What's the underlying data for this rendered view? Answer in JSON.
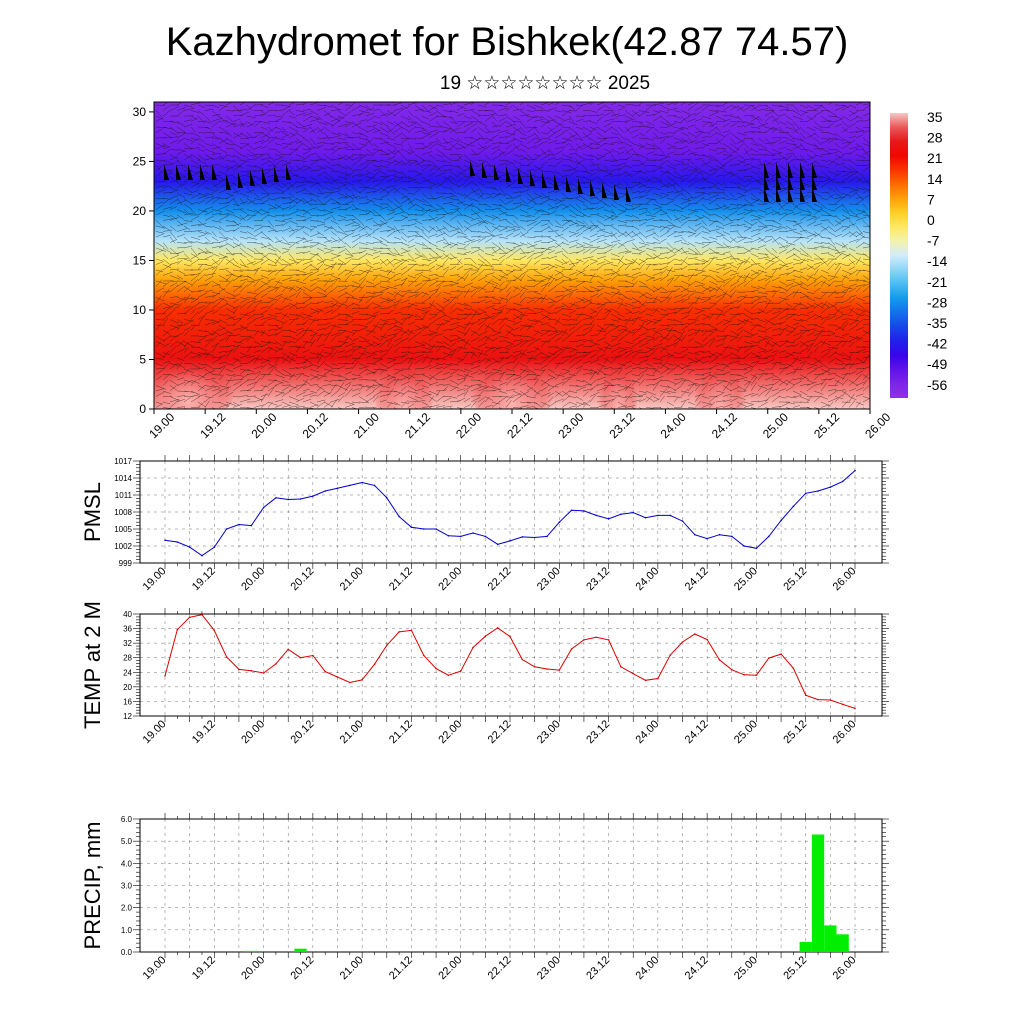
{
  "title": "Kazhydromet for Bishkek(42.87 74.57)",
  "subtitle": "19 ☆☆☆☆☆☆☆☆ 2025",
  "chart_data": [
    {
      "type": "heatmap",
      "title": "",
      "yticks": [
        "0",
        "5",
        "10",
        "15",
        "20",
        "25",
        "30"
      ],
      "ylim": [
        0,
        31
      ],
      "xticks": [
        "19.00",
        "19.12",
        "20.00",
        "20.12",
        "21.00",
        "21.12",
        "22.00",
        "22.12",
        "23.00",
        "23.12",
        "24.00",
        "24.12",
        "25.00",
        "25.12",
        "26.00"
      ],
      "colorbar": {
        "labels": [
          "35",
          "28",
          "21",
          "14",
          "7",
          "0",
          "-7",
          "-14",
          "-21",
          "-28",
          "-35",
          "-42",
          "-49",
          "-56"
        ]
      },
      "temperature_profile": [
        {
          "level": 0,
          "value": 35
        },
        {
          "level": 5,
          "value": 24
        },
        {
          "level": 10,
          "value": 16
        },
        {
          "level": 13,
          "value": 6
        },
        {
          "level": 15,
          "value": -4
        },
        {
          "level": 17,
          "value": -16
        },
        {
          "level": 20,
          "value": -30
        },
        {
          "level": 23,
          "value": -45
        },
        {
          "level": 26,
          "value": -55
        },
        {
          "level": 31,
          "value": -60
        }
      ]
    },
    {
      "type": "line",
      "ylabel": "PMSL",
      "ylim": [
        999,
        1017
      ],
      "yticks": [
        "999",
        "1002",
        "1005",
        "1008",
        "1011",
        "1014",
        "1017"
      ],
      "xticks": [
        "19.00",
        "19.12",
        "20.00",
        "20.12",
        "21.00",
        "21.12",
        "22.00",
        "22.12",
        "23.00",
        "23.12",
        "24.00",
        "24.12",
        "25.00",
        "25.12",
        "26.00"
      ],
      "series": [
        {
          "color": "#0000cc",
          "values": [
            1003.0,
            1002.7,
            1001.8,
            1000.3,
            1001.8,
            1005.0,
            1005.8,
            1005.6,
            1008.8,
            1010.5,
            1010.2,
            1010.3,
            1010.8,
            1011.7,
            1012.2,
            1012.7,
            1013.2,
            1012.7,
            1010.5,
            1007.2,
            1005.3,
            1005.0,
            1005.0,
            1003.8,
            1003.7,
            1004.3,
            1003.7,
            1002.3,
            1002.9,
            1003.6,
            1003.5,
            1003.7,
            1006.2,
            1008.3,
            1008.2,
            1007.4,
            1006.8,
            1007.6,
            1007.9,
            1007.0,
            1007.4,
            1007.4,
            1006.4,
            1004.0,
            1003.3,
            1004.0,
            1003.7,
            1002.0,
            1001.6,
            1003.7,
            1006.5,
            1009.0,
            1011.3,
            1011.7,
            1012.4,
            1013.4,
            1015.3
          ]
        }
      ]
    },
    {
      "type": "line",
      "ylabel": "TEMP at 2 M",
      "ylim": [
        12,
        40
      ],
      "yticks": [
        "12",
        "16",
        "20",
        "24",
        "28",
        "32",
        "36",
        "40"
      ],
      "xticks": [
        "19.00",
        "19.12",
        "20.00",
        "20.12",
        "21.00",
        "21.12",
        "22.00",
        "22.12",
        "23.00",
        "23.12",
        "24.00",
        "24.12",
        "25.00",
        "25.12",
        "26.00"
      ],
      "series": [
        {
          "color": "#dd0000",
          "values": [
            23.0,
            35.7,
            39.1,
            39.8,
            35.5,
            28.2,
            24.8,
            24.4,
            23.8,
            26.3,
            30.3,
            28.0,
            28.6,
            24.2,
            22.7,
            21.2,
            21.9,
            26.2,
            31.4,
            35.1,
            35.5,
            28.6,
            25.0,
            23.2,
            24.3,
            30.8,
            33.9,
            36.2,
            33.8,
            27.5,
            25.5,
            24.9,
            24.6,
            30.4,
            32.9,
            33.6,
            32.9,
            25.5,
            23.6,
            21.8,
            22.3,
            28.7,
            32.3,
            34.5,
            33.0,
            27.4,
            24.7,
            23.3,
            23.2,
            27.9,
            29.0,
            25.1,
            17.7,
            16.5,
            16.4,
            15.2,
            14.1
          ]
        }
      ]
    },
    {
      "type": "bar",
      "ylabel": "PRECIP, mm",
      "ylim": [
        0,
        6
      ],
      "yticks": [
        "0.0",
        "1.0",
        "2.0",
        "3.0",
        "4.0",
        "5.0",
        "6.0"
      ],
      "xticks": [
        "19.00",
        "19.12",
        "20.00",
        "20.12",
        "21.00",
        "21.12",
        "22.00",
        "22.12",
        "23.00",
        "23.12",
        "24.00",
        "24.12",
        "25.00",
        "25.12",
        "26.00"
      ],
      "color": "#00ee00",
      "bars": [
        {
          "step": 7,
          "value": 0.05
        },
        {
          "step": 11,
          "value": 0.15
        },
        {
          "step": 52,
          "value": 0.45
        },
        {
          "step": 53,
          "value": 5.3
        },
        {
          "step": 54,
          "value": 1.2
        },
        {
          "step": 55,
          "value": 0.8
        }
      ]
    }
  ],
  "colors": {
    "pmsl_line": "#0000cc",
    "temp_line": "#dd0000",
    "precip_bar": "#00ee00"
  }
}
